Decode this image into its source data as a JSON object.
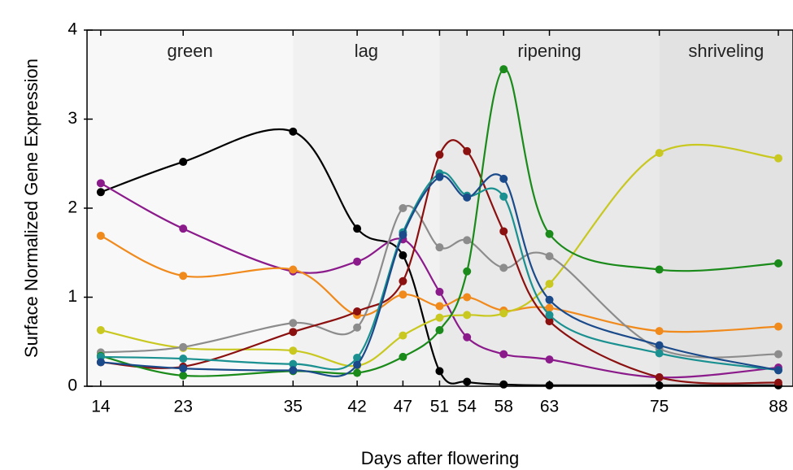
{
  "chart_data": {
    "type": "line",
    "xlabel": "Days after flowering",
    "ylabel": "Surface Normalized Gene Expression",
    "x": [
      14,
      23,
      35,
      42,
      47,
      51,
      54,
      58,
      63,
      75,
      88
    ],
    "xlim": [
      12.5,
      89.6
    ],
    "ylim": [
      0,
      4
    ],
    "xticks": [
      14,
      23,
      35,
      42,
      47,
      51,
      54,
      58,
      63,
      75,
      88
    ],
    "yticks": [
      0,
      1,
      2,
      3,
      4
    ],
    "regions": [
      {
        "label": "green",
        "start": 12.5,
        "end": 35,
        "color": "#f8f8f8"
      },
      {
        "label": "lag",
        "start": 35,
        "end": 51,
        "color": "#f1f1f1"
      },
      {
        "label": "ripening",
        "start": 51,
        "end": 75,
        "color": "#e9e9e9"
      },
      {
        "label": "shriveling",
        "start": 75,
        "end": 89.6,
        "color": "#e2e2e2"
      }
    ],
    "series": [
      {
        "color": "#000000",
        "values": [
          2.18,
          2.52,
          2.86,
          1.77,
          1.47,
          0.17,
          0.05,
          0.02,
          0.01,
          0.01,
          0.01
        ]
      },
      {
        "color": "#8b1a8b",
        "values": [
          2.28,
          1.77,
          1.29,
          1.4,
          1.65,
          1.06,
          0.55,
          0.36,
          0.3,
          0.1,
          0.21
        ]
      },
      {
        "color": "#f08a1c",
        "values": [
          1.69,
          1.24,
          1.31,
          0.8,
          1.03,
          0.9,
          1.0,
          0.85,
          0.88,
          0.62,
          0.67
        ]
      },
      {
        "color": "#c8c820",
        "values": [
          0.63,
          0.43,
          0.4,
          0.23,
          0.57,
          0.77,
          0.8,
          0.82,
          1.15,
          2.62,
          2.56
        ]
      },
      {
        "color": "#8c8c8c",
        "values": [
          0.38,
          0.44,
          0.71,
          0.66,
          2.0,
          1.56,
          1.64,
          1.33,
          1.46,
          0.42,
          0.36
        ]
      },
      {
        "color": "#8b1010",
        "values": [
          0.27,
          0.22,
          0.61,
          0.84,
          1.18,
          2.6,
          2.64,
          1.74,
          0.73,
          0.1,
          0.04
        ]
      },
      {
        "color": "#1a8a1a",
        "values": [
          0.34,
          0.12,
          0.17,
          0.15,
          0.33,
          0.63,
          1.29,
          3.56,
          1.71,
          1.31,
          1.38
        ]
      },
      {
        "color": "#1a9090",
        "values": [
          0.33,
          0.31,
          0.25,
          0.32,
          1.73,
          2.39,
          2.14,
          2.13,
          0.8,
          0.37,
          0.18
        ]
      },
      {
        "color": "#1a4a8a",
        "values": [
          0.27,
          0.2,
          0.18,
          0.24,
          1.7,
          2.35,
          2.12,
          2.33,
          0.97,
          0.46,
          0.18
        ]
      }
    ]
  }
}
